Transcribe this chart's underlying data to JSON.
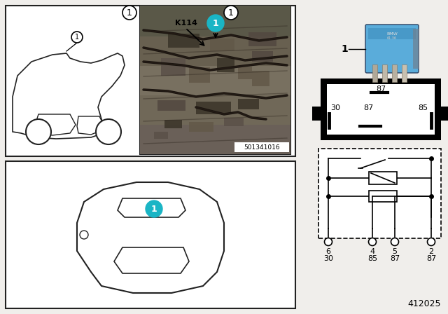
{
  "bg_color": "#f0eeeb",
  "border_color": "#222222",
  "teal_color": "#1ab5c5",
  "teal_text_color": "#ffffff",
  "black": "#000000",
  "white": "#ffffff",
  "relay_blue": "#5aacda",
  "relay_blue2": "#4899c8",
  "relay_dark": "#2a4060",
  "gray_photo": "#a8a090",
  "diagram_number": "412025",
  "part_number": "501341016",
  "k114_text": "K114"
}
